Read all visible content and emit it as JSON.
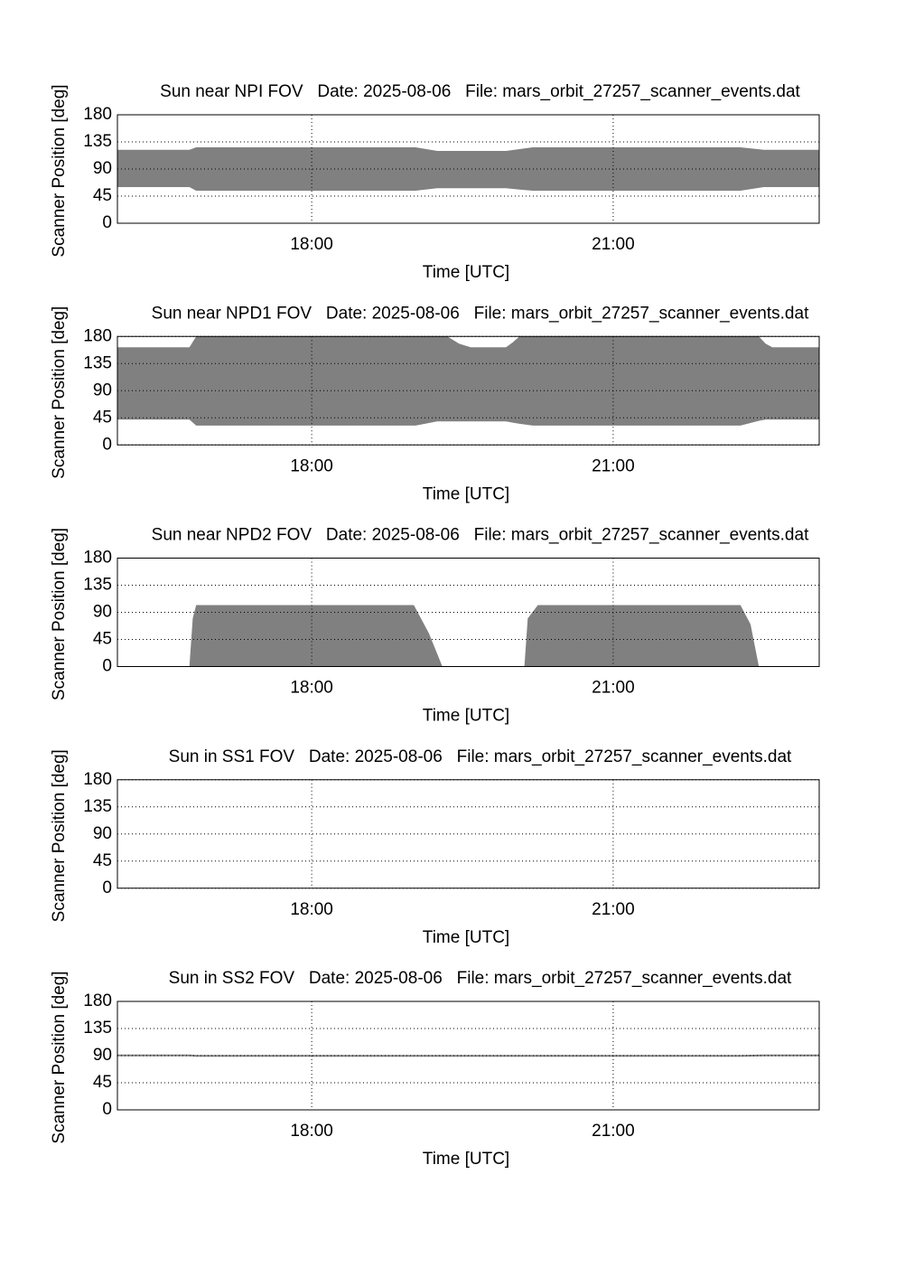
{
  "chart_data": [
    {
      "type": "band",
      "title": "Sun near NPI FOV   Date: 2025-08-06   File: mars_orbit_27257_scanner_events.dat",
      "xlabel": "Time [UTC]",
      "ylabel": "Scanner Position [deg]",
      "color": "#808080",
      "grid": true,
      "x": [
        "16:04",
        "16:47",
        "16:51",
        "19:02",
        "19:15",
        "19:56",
        "20:04",
        "20:12",
        "22:16",
        "22:30",
        "23:03"
      ],
      "lower": [
        60,
        60,
        54,
        54,
        58,
        58,
        56,
        54,
        54,
        60,
        60
      ],
      "upper": [
        122,
        122,
        126,
        126,
        120,
        120,
        123,
        126,
        126,
        122,
        122
      ],
      "xlim": [
        "16:04",
        "23:03"
      ],
      "xticks": [
        "18:00",
        "21:00"
      ],
      "ylim": [
        0,
        180
      ],
      "yticks": [
        0,
        45,
        90,
        135,
        180
      ]
    },
    {
      "type": "band",
      "title": "Sun near NPD1 FOV   Date: 2025-08-06   File: mars_orbit_27257_scanner_events.dat",
      "xlabel": "Time [UTC]",
      "ylabel": "Scanner Position [deg]",
      "color": "#808080",
      "grid": true,
      "x": [
        "16:04",
        "16:47",
        "16:51",
        "19:02",
        "19:15",
        "19:21",
        "19:28",
        "19:35",
        "19:56",
        "20:00",
        "20:04",
        "20:12",
        "22:16",
        "22:27",
        "22:31",
        "22:35",
        "23:03"
      ],
      "lower": [
        42,
        42,
        32,
        32,
        39,
        39,
        39,
        39,
        39,
        37,
        35,
        32,
        32,
        40,
        42,
        42,
        42
      ],
      "upper": [
        162,
        162,
        180,
        180,
        180,
        180,
        168,
        162,
        162,
        170,
        180,
        180,
        180,
        180,
        168,
        162,
        162
      ],
      "xlim": [
        "16:04",
        "23:03"
      ],
      "xticks": [
        "18:00",
        "21:00"
      ],
      "ylim": [
        0,
        180
      ],
      "yticks": [
        0,
        45,
        90,
        135,
        180
      ]
    },
    {
      "type": "band",
      "title": "Sun near NPD2 FOV   Date: 2025-08-06   File: mars_orbit_27257_scanner_events.dat",
      "xlabel": "Time [UTC]",
      "ylabel": "Scanner Position [deg]",
      "color": "#808080",
      "grid": true,
      "x": [
        "16:04",
        "16:47",
        "16:49",
        "16:51",
        "19:01",
        "19:10",
        "19:18",
        "20:07",
        "20:09",
        "20:15",
        "22:16",
        "22:22",
        "22:27",
        "23:03"
      ],
      "lower": [
        0,
        0,
        0,
        0,
        0,
        0,
        0,
        0,
        0,
        0,
        0,
        0,
        0,
        0
      ],
      "upper": [
        0,
        0,
        80,
        102,
        102,
        55,
        0,
        0,
        80,
        102,
        102,
        70,
        0,
        0
      ],
      "xlim": [
        "16:04",
        "23:03"
      ],
      "xticks": [
        "18:00",
        "21:00"
      ],
      "ylim": [
        0,
        180
      ],
      "yticks": [
        0,
        45,
        90,
        135,
        180
      ]
    },
    {
      "type": "band",
      "title": "Sun in SS1 FOV   Date: 2025-08-06   File: mars_orbit_27257_scanner_events.dat",
      "xlabel": "Time [UTC]",
      "ylabel": "Scanner Position [deg]",
      "color": "#808080",
      "grid": true,
      "x": [],
      "lower": [],
      "upper": [],
      "xlim": [
        "16:04",
        "23:03"
      ],
      "xticks": [
        "18:00",
        "21:00"
      ],
      "ylim": [
        0,
        180
      ],
      "yticks": [
        0,
        45,
        90,
        135,
        180
      ]
    },
    {
      "type": "band",
      "title": "Sun in SS2 FOV   Date: 2025-08-06   File: mars_orbit_27257_scanner_events.dat",
      "xlabel": "Time [UTC]",
      "ylabel": "Scanner Position [deg]",
      "color": "#808080",
      "grid": true,
      "x": [
        "16:04",
        "16:47",
        "16:51",
        "19:56",
        "20:12",
        "22:16",
        "22:30",
        "23:03"
      ],
      "lower": [
        89,
        89,
        88,
        88,
        88,
        88,
        89,
        89
      ],
      "upper": [
        92,
        92,
        91,
        91,
        91,
        91,
        92,
        92
      ],
      "xlim": [
        "16:04",
        "23:03"
      ],
      "xticks": [
        "18:00",
        "21:00"
      ],
      "ylim": [
        0,
        180
      ],
      "yticks": [
        0,
        45,
        90,
        135,
        180
      ]
    }
  ]
}
